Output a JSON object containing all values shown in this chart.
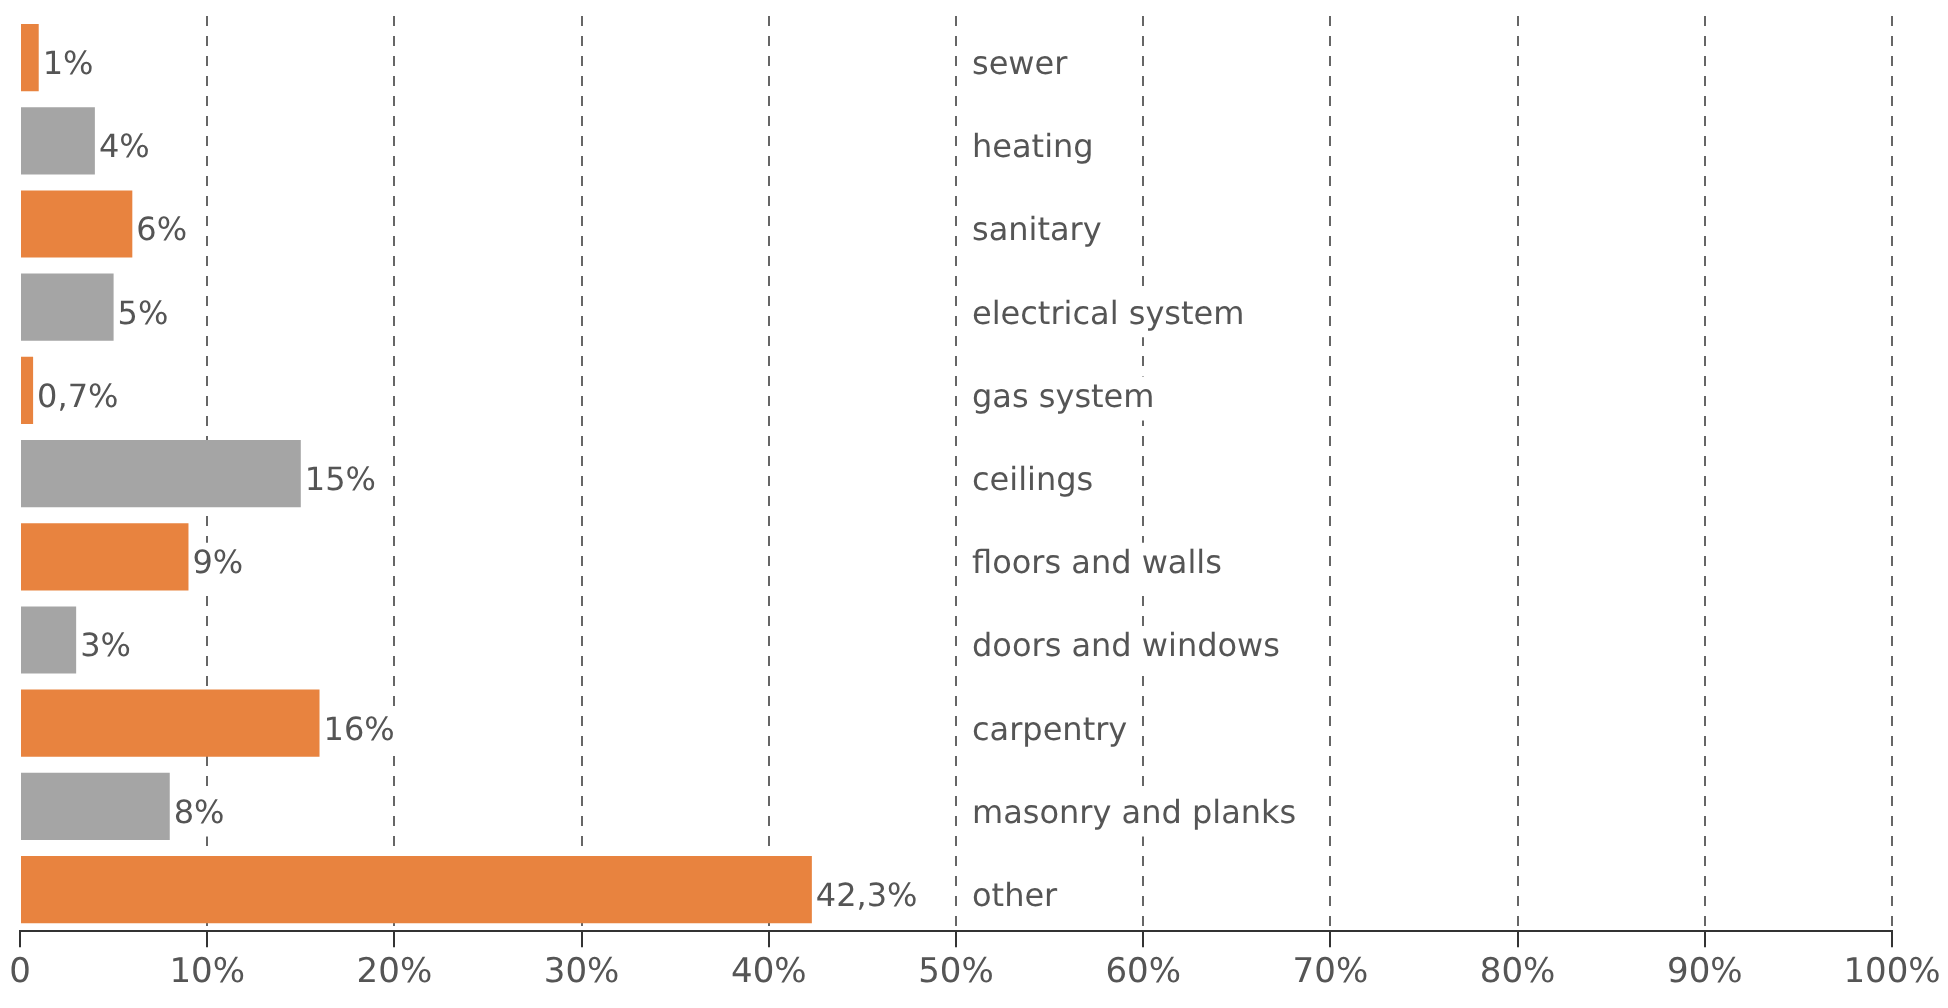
{
  "chart_data": {
    "type": "bar",
    "orientation": "horizontal",
    "categories": [
      "sewer",
      "heating",
      "sanitary",
      "electrical system",
      "gas system",
      "ceilings",
      "floors and walls",
      "doors and windows",
      "carpentry",
      "masonry and planks",
      "other"
    ],
    "values": [
      1,
      4,
      6,
      5,
      0.7,
      15,
      9,
      3,
      16,
      8,
      42.3
    ],
    "value_labels": [
      "1%",
      "4%",
      "6%",
      "5%",
      "0,7%",
      "15%",
      "9%",
      "3%",
      "16%",
      "8%",
      "42,3%"
    ],
    "colors": [
      "#e8833f",
      "#a5a5a5",
      "#e8833f",
      "#a5a5a5",
      "#e8833f",
      "#a5a5a5",
      "#e8833f",
      "#a5a5a5",
      "#e8833f",
      "#a5a5a5",
      "#e8833f"
    ],
    "xlim": [
      0,
      100
    ],
    "xticks": [
      {
        "value": 0,
        "label": "0"
      },
      {
        "value": 10,
        "label": "10%"
      },
      {
        "value": 20,
        "label": "20%"
      },
      {
        "value": 30,
        "label": "30%"
      },
      {
        "value": 40,
        "label": "40%"
      },
      {
        "value": 50,
        "label": "50%"
      },
      {
        "value": 60,
        "label": "60%"
      },
      {
        "value": 70,
        "label": "70%"
      },
      {
        "value": 80,
        "label": "80%"
      },
      {
        "value": 90,
        "label": "90%"
      },
      {
        "value": 100,
        "label": "100%"
      }
    ],
    "grid": "x",
    "legend": false
  }
}
